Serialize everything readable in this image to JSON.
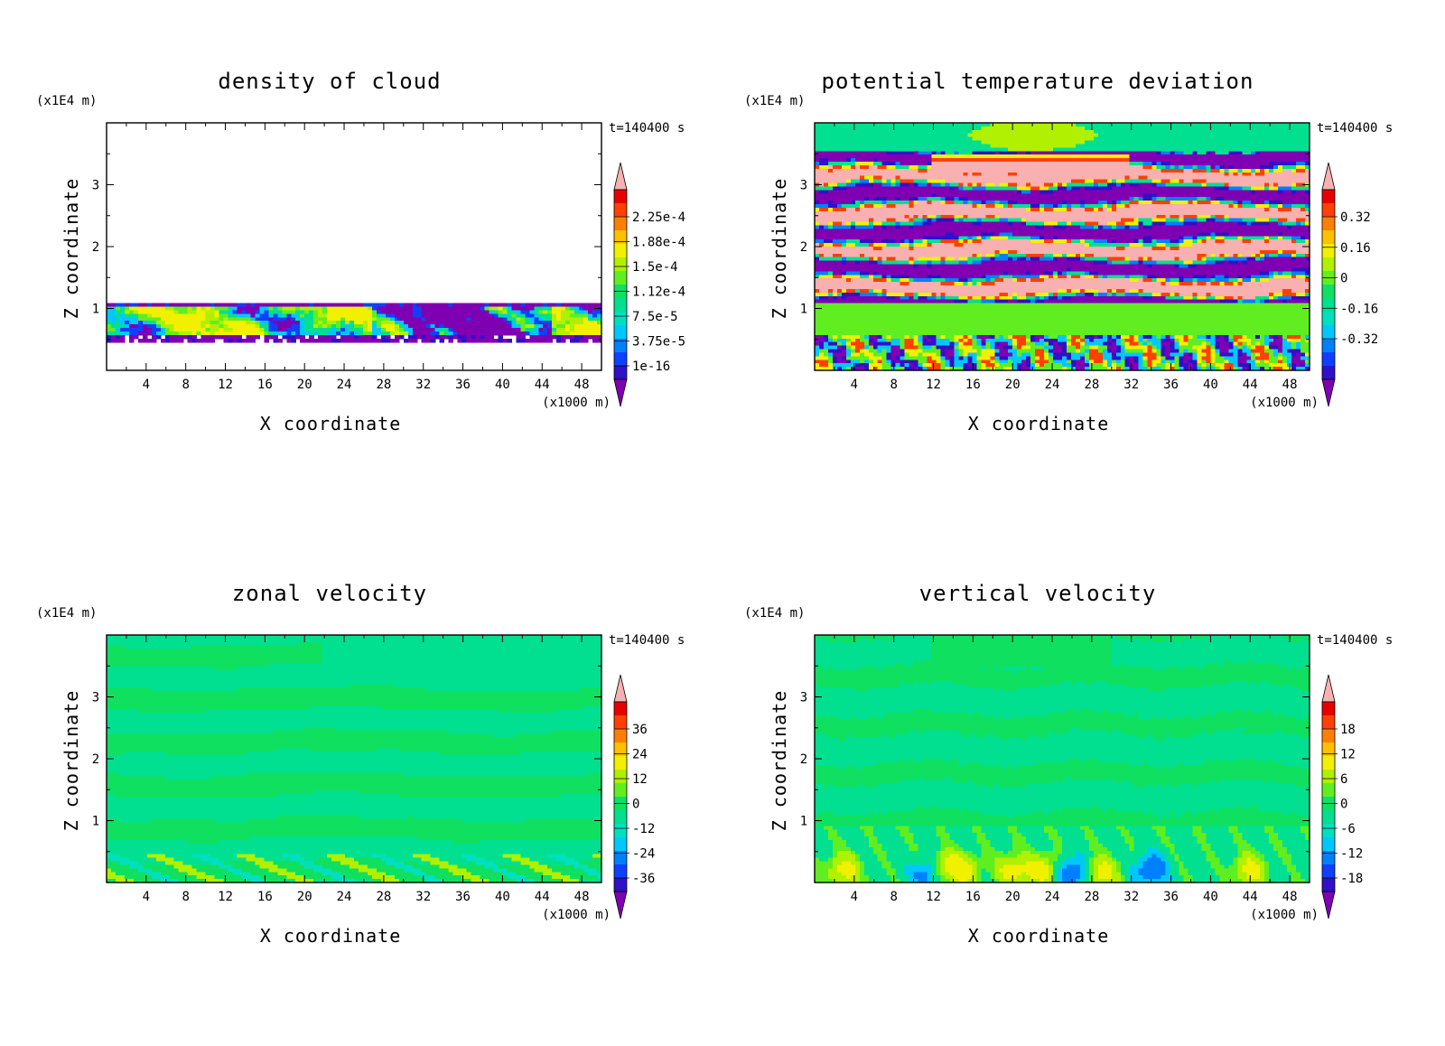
{
  "chart_data": [
    {
      "type": "heatmap",
      "title": "density of cloud",
      "xlabel": "X coordinate",
      "ylabel": "Z coordinate",
      "x_unit": "(x1000 m)",
      "y_unit": "(x1E4 m)",
      "time_label": "t=140400 s",
      "x_ticks": [
        "4",
        "8",
        "12",
        "16",
        "20",
        "24",
        "28",
        "32",
        "36",
        "40",
        "44",
        "48"
      ],
      "y_ticks": [
        "1",
        "2",
        "3"
      ],
      "xlim": [
        0,
        50
      ],
      "ylim": [
        0,
        4
      ],
      "colorbar_labels": [
        "2.25e-4",
        "1.88e-4",
        "1.5e-4",
        "1.12e-4",
        "7.5e-5",
        "3.75e-5",
        "1e-16"
      ],
      "field": "cloud"
    },
    {
      "type": "heatmap",
      "title": "potential temperature deviation",
      "xlabel": "X coordinate",
      "ylabel": "Z coordinate",
      "x_unit": "(x1000 m)",
      "y_unit": "(x1E4 m)",
      "time_label": "t=140400 s",
      "x_ticks": [
        "4",
        "8",
        "12",
        "16",
        "20",
        "24",
        "28",
        "32",
        "36",
        "40",
        "44",
        "48"
      ],
      "y_ticks": [
        "1",
        "2",
        "3"
      ],
      "xlim": [
        0,
        50
      ],
      "ylim": [
        0,
        4
      ],
      "colorbar_labels": [
        "0.32",
        "0.16",
        "0",
        "-0.16",
        "-0.32"
      ],
      "field": "theta"
    },
    {
      "type": "heatmap",
      "title": "zonal velocity",
      "xlabel": "X coordinate",
      "ylabel": "Z coordinate",
      "x_unit": "(x1000 m)",
      "y_unit": "(x1E4 m)",
      "time_label": "t=140400 s",
      "x_ticks": [
        "4",
        "8",
        "12",
        "16",
        "20",
        "24",
        "28",
        "32",
        "36",
        "40",
        "44",
        "48"
      ],
      "y_ticks": [
        "1",
        "2",
        "3"
      ],
      "xlim": [
        0,
        50
      ],
      "ylim": [
        0,
        4
      ],
      "colorbar_labels": [
        "36",
        "24",
        "12",
        "0",
        "-12",
        "-24",
        "-36"
      ],
      "field": "u"
    },
    {
      "type": "heatmap",
      "title": "vertical velocity",
      "xlabel": "X coordinate",
      "ylabel": "Z coordinate",
      "x_unit": "(x1000 m)",
      "y_unit": "(x1E4 m)",
      "time_label": "t=140400 s",
      "x_ticks": [
        "4",
        "8",
        "12",
        "16",
        "20",
        "24",
        "28",
        "32",
        "36",
        "40",
        "44",
        "48"
      ],
      "y_ticks": [
        "1",
        "2",
        "3"
      ],
      "xlim": [
        0,
        50
      ],
      "ylim": [
        0,
        4
      ],
      "colorbar_labels": [
        "18",
        "12",
        "6",
        "0",
        "-6",
        "-12",
        "-18"
      ],
      "field": "w"
    }
  ],
  "palette": [
    "#7f00b2",
    "#3010c8",
    "#1040ff",
    "#0080ff",
    "#00c8ff",
    "#00e0c0",
    "#00e090",
    "#10e060",
    "#60ee20",
    "#b0f000",
    "#f0f000",
    "#ffc000",
    "#ff8000",
    "#ff4000",
    "#e80000",
    "#f8b0b0"
  ]
}
